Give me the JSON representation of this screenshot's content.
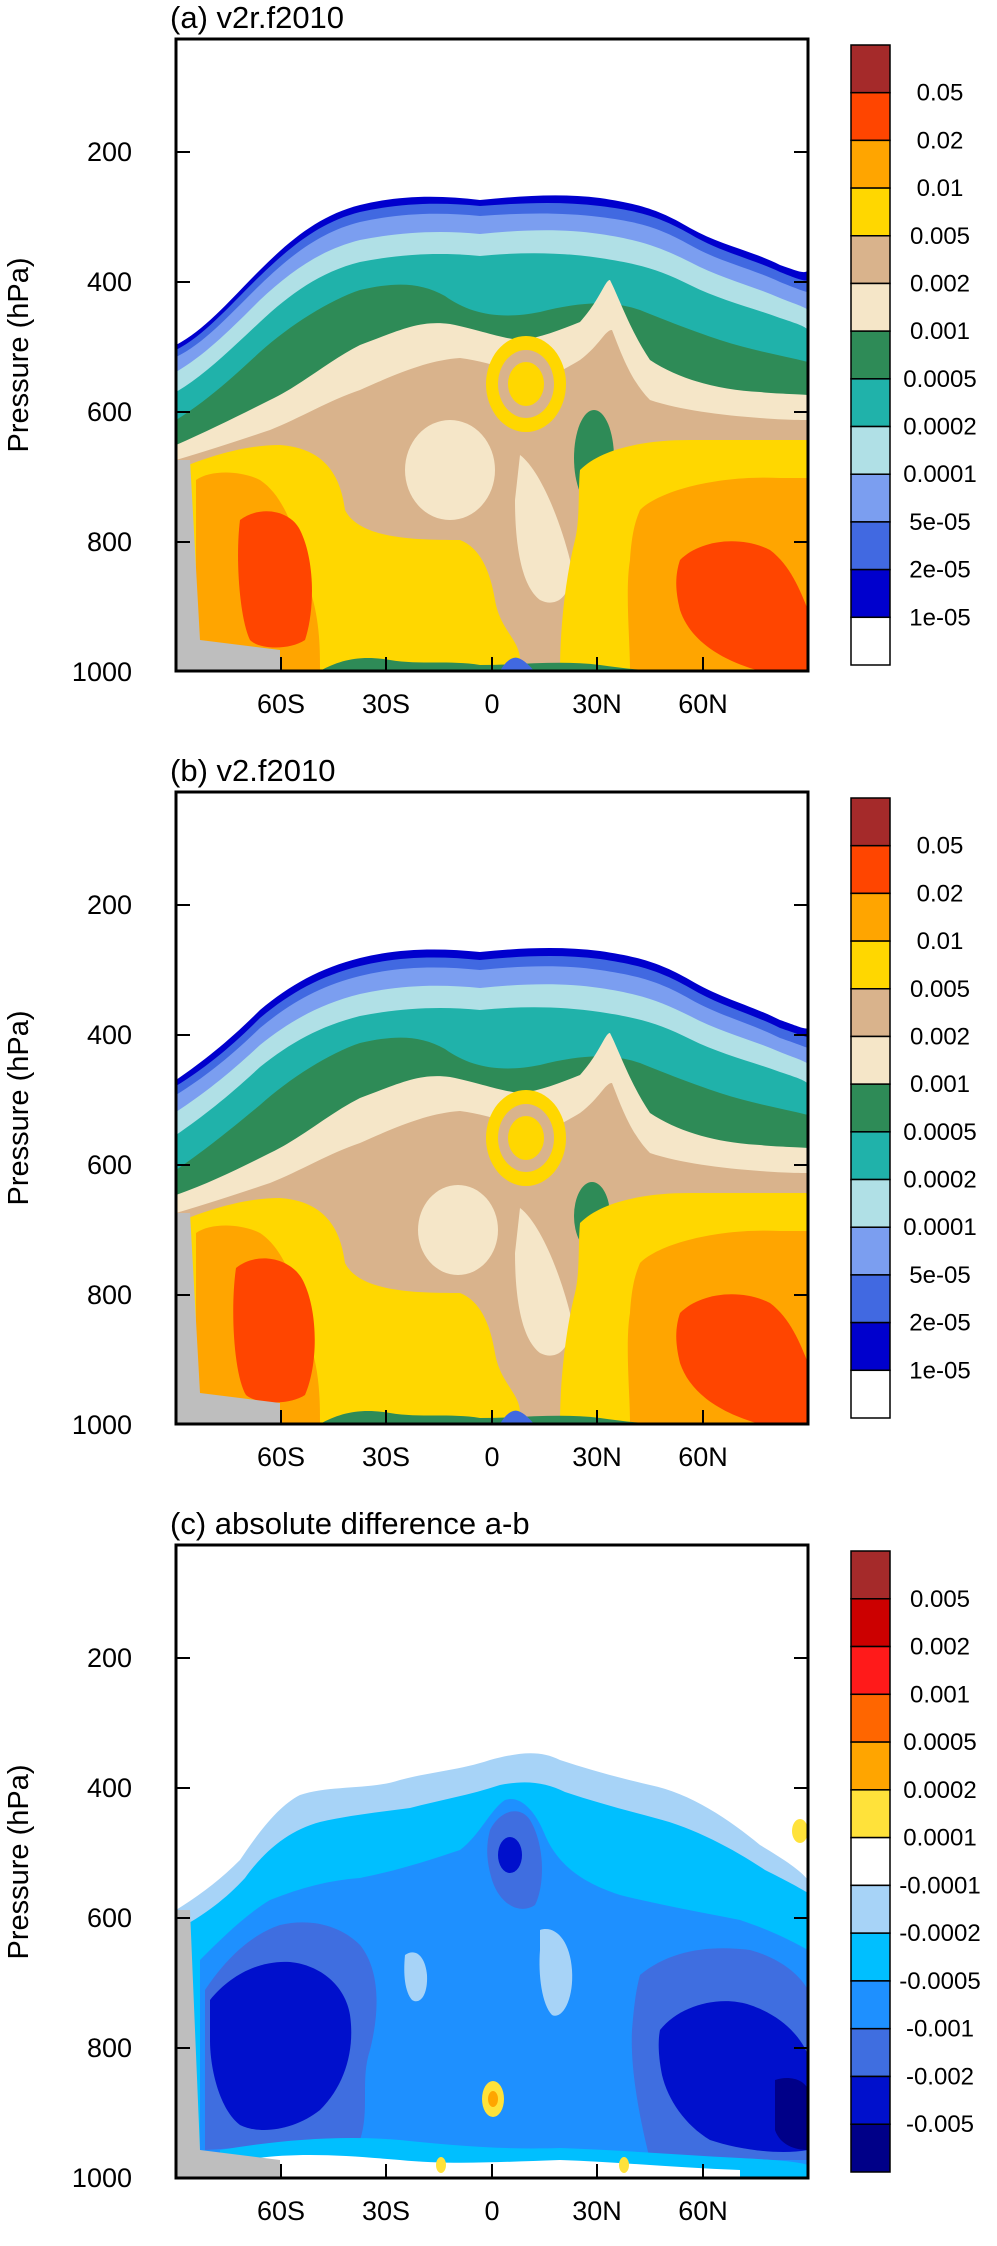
{
  "chart_data": [
    {
      "type": "heatmap",
      "title": "(a) v2r.f2010",
      "ylabel": "Pressure (hPa)",
      "xlabel": "",
      "x_ticks": [
        "60S",
        "30S",
        "0",
        "30N",
        "60N"
      ],
      "x_tick_values": [
        -60,
        -30,
        0,
        30,
        60
      ],
      "y_ticks": [
        "200",
        "400",
        "600",
        "800",
        "1000"
      ],
      "y_tick_values": [
        200,
        400,
        600,
        800,
        1000
      ],
      "xlim": [
        -90,
        90
      ],
      "ylim": [
        1000,
        30
      ],
      "colorbar": {
        "labels": [
          "0.05",
          "0.02",
          "0.01",
          "0.005",
          "0.002",
          "0.001",
          "0.0005",
          "0.0002",
          "0.0001",
          "5e-05",
          "2e-05",
          "1e-05"
        ],
        "colors": [
          "#a52a2a",
          "#ff4500",
          "#ffa500",
          "#ffd700",
          "#d9b38c",
          "#f5e6c8",
          "#2e8b57",
          "#20b2aa",
          "#b0e0e6",
          "#7b9ef0",
          "#4169e1",
          "#0000cd",
          "#ffffff"
        ]
      },
      "grid": false,
      "land_mask_color": "#bebebe",
      "contour_fill_levels_by_region": [
        {
          "region": "lower troposphere 50-70S",
          "level": "0.02"
        },
        {
          "region": "lower troposphere 45-75N",
          "level": "0.02"
        },
        {
          "region": "near 0-5S 550 hPa",
          "level": "0.005"
        },
        {
          "region": "near 10N 650 hPa",
          "level": "0.001"
        },
        {
          "region": "tropopause edge",
          "level": "1e-05"
        }
      ]
    },
    {
      "type": "heatmap",
      "title": "(b) v2.f2010",
      "ylabel": "Pressure (hPa)",
      "xlabel": "",
      "x_ticks": [
        "60S",
        "30S",
        "0",
        "30N",
        "60N"
      ],
      "x_tick_values": [
        -60,
        -30,
        0,
        30,
        60
      ],
      "y_ticks": [
        "200",
        "400",
        "600",
        "800",
        "1000"
      ],
      "y_tick_values": [
        200,
        400,
        600,
        800,
        1000
      ],
      "xlim": [
        -90,
        90
      ],
      "ylim": [
        1000,
        30
      ],
      "colorbar": {
        "labels": [
          "0.05",
          "0.02",
          "0.01",
          "0.005",
          "0.002",
          "0.001",
          "0.0005",
          "0.0002",
          "0.0001",
          "5e-05",
          "2e-05",
          "1e-05"
        ],
        "colors": [
          "#a52a2a",
          "#ff4500",
          "#ffa500",
          "#ffd700",
          "#d9b38c",
          "#f5e6c8",
          "#2e8b57",
          "#20b2aa",
          "#b0e0e6",
          "#7b9ef0",
          "#4169e1",
          "#0000cd",
          "#ffffff"
        ]
      },
      "grid": false,
      "land_mask_color": "#bebebe"
    },
    {
      "type": "heatmap",
      "title": "(c) absolute difference a-b",
      "ylabel": "Pressure (hPa)",
      "xlabel": "",
      "x_ticks": [
        "60S",
        "30S",
        "0",
        "30N",
        "60N"
      ],
      "x_tick_values": [
        -60,
        -30,
        0,
        30,
        60
      ],
      "y_ticks": [
        "200",
        "400",
        "600",
        "800",
        "1000"
      ],
      "y_tick_values": [
        200,
        400,
        600,
        800,
        1000
      ],
      "xlim": [
        -90,
        90
      ],
      "ylim": [
        1000,
        30
      ],
      "colorbar": {
        "labels": [
          "0.005",
          "0.002",
          "0.001",
          "0.0005",
          "0.0002",
          "0.0001",
          "-0.0001",
          "-0.0002",
          "-0.0005",
          "-0.001",
          "-0.002",
          "-0.005"
        ],
        "colors": [
          "#a52a2a",
          "#cc0000",
          "#ff1a1a",
          "#ff6600",
          "#ffa500",
          "#ffe23a",
          "#ffffff",
          "#a7d3f7",
          "#00bfff",
          "#1e90ff",
          "#3f6ee0",
          "#0010cc",
          "#000088"
        ]
      },
      "grid": false,
      "land_mask_color": "#bebebe"
    }
  ]
}
